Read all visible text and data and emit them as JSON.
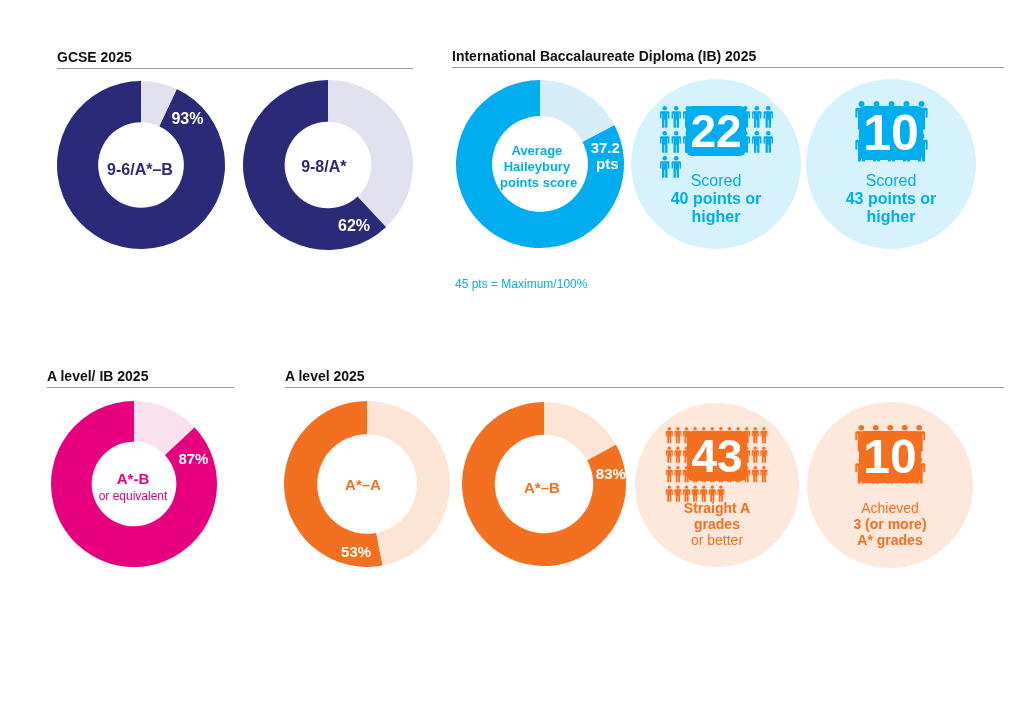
{
  "chart_data": [
    {
      "type": "donut",
      "title": "GCSE 2025",
      "categories": [
        "9-6/A*–B",
        null
      ],
      "values": [
        93,
        7
      ],
      "colors": [
        "#2b2a78",
        "#e2e1ef"
      ],
      "value_labels": [
        "93%",
        null
      ]
    },
    {
      "type": "donut",
      "categories": [
        "9-8/A*",
        null
      ],
      "values": [
        62,
        38
      ],
      "colors": [
        "#2b2a78",
        "#e2e1ef"
      ],
      "value_labels": [
        "62%",
        null
      ]
    },
    {
      "type": "donut",
      "title": "International Baccalaureate Diploma (IB) 2025",
      "categories": [
        "Average Haileybury points score",
        null
      ],
      "values": [
        37.2,
        7.8
      ],
      "colors": [
        "#00aeef",
        "#d6eefa"
      ],
      "value_labels": [
        "37.2 pts",
        null
      ],
      "annotations": [
        "45 pts = Maximum/100%"
      ]
    },
    {
      "type": "other",
      "values": [
        22
      ],
      "color": "#00aeef",
      "data_labels": true,
      "annotations": [
        "Scored",
        "40 points or higher"
      ]
    },
    {
      "type": "other",
      "values": [
        10
      ],
      "color": "#00aeef",
      "data_labels": true,
      "annotations": [
        "Scored",
        "43 points or higher"
      ]
    },
    {
      "type": "donut",
      "title": "A level/ IB 2025",
      "categories": [
        "A*-B",
        null
      ],
      "values": [
        87,
        13
      ],
      "colors": [
        "#e6007e",
        "#fbe1ee"
      ],
      "value_labels": [
        "87%",
        null
      ],
      "annotations": [
        "or equivalent"
      ]
    },
    {
      "type": "donut",
      "title": "A level 2025",
      "categories": [
        "A*–A",
        null
      ],
      "values": [
        53,
        47
      ],
      "colors": [
        "#f37021",
        "#fde5d5"
      ],
      "value_labels": [
        "53%",
        null
      ]
    },
    {
      "type": "donut",
      "categories": [
        "A*–B",
        null
      ],
      "values": [
        83,
        17
      ],
      "colors": [
        "#f37021",
        "#fde5d5"
      ],
      "value_labels": [
        "83%",
        null
      ]
    },
    {
      "type": "other",
      "values": [
        43
      ],
      "color": "#f37021",
      "data_labels": true,
      "annotations": [
        "Straight A grades",
        "or better"
      ]
    },
    {
      "type": "other",
      "values": [
        10
      ],
      "color": "#f37021",
      "data_labels": true,
      "annotations": [
        "Achieved",
        "3 (or more) A* grades"
      ]
    }
  ]
}
